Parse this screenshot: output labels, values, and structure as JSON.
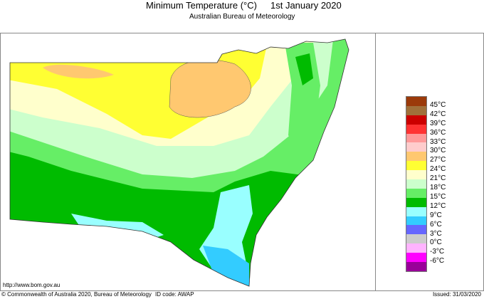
{
  "header": {
    "title": "Minimum Temperature (°C)",
    "date": "1st January 2020",
    "subtitle": "Australian Bureau of Meteorology"
  },
  "footer": {
    "url": "http://www.bom.gov.au",
    "copyright": "© Commonwealth of Australia 2020, Bureau of Meteorology",
    "id_code": "ID code: AWAP",
    "issued": "Issued: 31/03/2020"
  },
  "legend": {
    "colors": [
      "#9b3a0a",
      "#a0703a",
      "#cc0000",
      "#ff3333",
      "#ff9999",
      "#ffcccc",
      "#ffc870",
      "#ffff33",
      "#ffffcc",
      "#ccffcc",
      "#66ee66",
      "#00bb00",
      "#99ffff",
      "#33ccff",
      "#6666ff",
      "#cccccc",
      "#ffb3ff",
      "#ff00ff",
      "#990099"
    ],
    "labels": [
      "45°C",
      "42°C",
      "39°C",
      "36°C",
      "33°C",
      "30°C",
      "27°C",
      "24°C",
      "21°C",
      "18°C",
      "15°C",
      "12°C",
      "9°C",
      "6°C",
      "3°C",
      "0°C",
      "-3°C",
      "-6°C"
    ]
  }
}
